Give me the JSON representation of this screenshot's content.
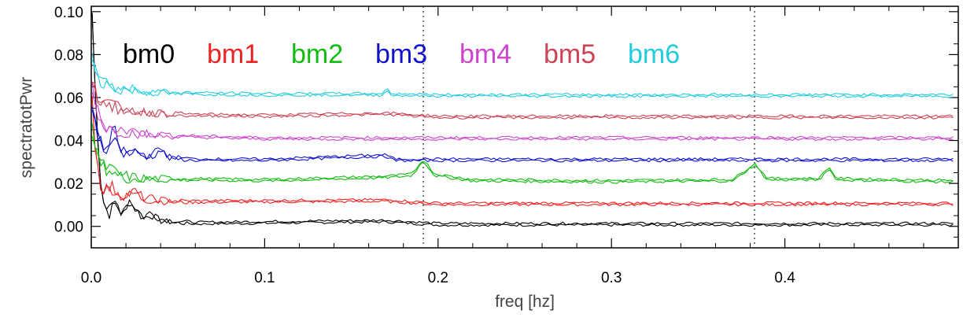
{
  "chart_data": {
    "type": "line",
    "xlabel": "freq [hz]",
    "ylabel": "spectratotPwr",
    "xlim": [
      0.0,
      0.5
    ],
    "ylim": [
      -0.01,
      0.1025
    ],
    "x_ticks": [
      {
        "value": 0.0,
        "label": "0.0"
      },
      {
        "value": 0.1,
        "label": "0.1"
      },
      {
        "value": 0.2,
        "label": "0.2"
      },
      {
        "value": 0.3,
        "label": "0.3"
      },
      {
        "value": 0.4,
        "label": "0.4"
      }
    ],
    "y_ticks": [
      {
        "value": 0.0,
        "label": "0.00"
      },
      {
        "value": 0.02,
        "label": "0.02"
      },
      {
        "value": 0.04,
        "label": "0.04"
      },
      {
        "value": 0.06,
        "label": "0.06"
      },
      {
        "value": 0.08,
        "label": "0.08"
      },
      {
        "value": 0.1,
        "label": "0.10"
      }
    ],
    "vertical_lines": [
      0.1915,
      0.3825
    ],
    "legend_placement": "top-left, horizontal row",
    "series": [
      {
        "name": "bm0",
        "color": "#000000",
        "baseline": 0.001,
        "points": [
          [
            0.0005,
            0.1
          ],
          [
            0.0025,
            0.06
          ],
          [
            0.005,
            0.025
          ],
          [
            0.007,
            0.012
          ],
          [
            0.01,
            0.006
          ],
          [
            0.014,
            0.011
          ],
          [
            0.018,
            0.006
          ],
          [
            0.022,
            0.012
          ],
          [
            0.026,
            0.008
          ],
          [
            0.03,
            0.004
          ],
          [
            0.034,
            0.006
          ],
          [
            0.04,
            0.003
          ],
          [
            0.05,
            0.002
          ],
          [
            0.06,
            0.0015
          ],
          [
            0.17,
            0.0025
          ],
          [
            0.2,
            0.001
          ],
          [
            0.3,
            0.001
          ],
          [
            0.4,
            0.001
          ],
          [
            0.497,
            0.001
          ]
        ]
      },
      {
        "name": "bm1",
        "color": "#ee2222",
        "baseline": 0.0105,
        "points": [
          [
            0.0005,
            0.06
          ],
          [
            0.0025,
            0.035
          ],
          [
            0.005,
            0.02
          ],
          [
            0.008,
            0.017
          ],
          [
            0.012,
            0.018
          ],
          [
            0.016,
            0.015
          ],
          [
            0.02,
            0.014
          ],
          [
            0.025,
            0.016
          ],
          [
            0.03,
            0.013
          ],
          [
            0.04,
            0.012
          ],
          [
            0.05,
            0.0115
          ],
          [
            0.17,
            0.012
          ],
          [
            0.2,
            0.0105
          ],
          [
            0.3,
            0.0105
          ],
          [
            0.4,
            0.0105
          ],
          [
            0.497,
            0.0105
          ]
        ]
      },
      {
        "name": "bm2",
        "color": "#11bb11",
        "baseline": 0.021,
        "points": [
          [
            0.0005,
            0.045
          ],
          [
            0.003,
            0.035
          ],
          [
            0.006,
            0.028
          ],
          [
            0.01,
            0.027
          ],
          [
            0.015,
            0.024
          ],
          [
            0.02,
            0.023
          ],
          [
            0.03,
            0.022
          ],
          [
            0.05,
            0.022
          ],
          [
            0.1,
            0.0215
          ],
          [
            0.17,
            0.023
          ],
          [
            0.185,
            0.024
          ],
          [
            0.1915,
            0.031
          ],
          [
            0.198,
            0.024
          ],
          [
            0.22,
            0.0215
          ],
          [
            0.3,
            0.021
          ],
          [
            0.37,
            0.0215
          ],
          [
            0.3825,
            0.029
          ],
          [
            0.39,
            0.022
          ],
          [
            0.42,
            0.022
          ],
          [
            0.425,
            0.0275
          ],
          [
            0.43,
            0.022
          ],
          [
            0.497,
            0.021
          ]
        ]
      },
      {
        "name": "bm3",
        "color": "#1111cc",
        "baseline": 0.031,
        "points": [
          [
            0.0005,
            0.054
          ],
          [
            0.003,
            0.045
          ],
          [
            0.006,
            0.037
          ],
          [
            0.01,
            0.036
          ],
          [
            0.013,
            0.046
          ],
          [
            0.016,
            0.036
          ],
          [
            0.02,
            0.034
          ],
          [
            0.025,
            0.035
          ],
          [
            0.03,
            0.033
          ],
          [
            0.035,
            0.033
          ],
          [
            0.04,
            0.036
          ],
          [
            0.045,
            0.032
          ],
          [
            0.06,
            0.031
          ],
          [
            0.1,
            0.031
          ],
          [
            0.17,
            0.033
          ],
          [
            0.175,
            0.031
          ],
          [
            0.3,
            0.031
          ],
          [
            0.4,
            0.031
          ],
          [
            0.497,
            0.031
          ]
        ]
      },
      {
        "name": "bm4",
        "color": "#cc44cc",
        "baseline": 0.041,
        "points": [
          [
            0.0005,
            0.064
          ],
          [
            0.003,
            0.055
          ],
          [
            0.006,
            0.048
          ],
          [
            0.01,
            0.046
          ],
          [
            0.015,
            0.045
          ],
          [
            0.02,
            0.044
          ],
          [
            0.025,
            0.044
          ],
          [
            0.03,
            0.043
          ],
          [
            0.05,
            0.042
          ],
          [
            0.1,
            0.041
          ],
          [
            0.2,
            0.041
          ],
          [
            0.3,
            0.041
          ],
          [
            0.4,
            0.041
          ],
          [
            0.497,
            0.041
          ]
        ]
      },
      {
        "name": "bm5",
        "color": "#cc4455",
        "baseline": 0.051,
        "points": [
          [
            0.0005,
            0.07
          ],
          [
            0.003,
            0.062
          ],
          [
            0.006,
            0.058
          ],
          [
            0.01,
            0.057
          ],
          [
            0.015,
            0.055
          ],
          [
            0.02,
            0.054
          ],
          [
            0.025,
            0.054
          ],
          [
            0.03,
            0.053
          ],
          [
            0.05,
            0.052
          ],
          [
            0.1,
            0.0515
          ],
          [
            0.17,
            0.0525
          ],
          [
            0.2,
            0.051
          ],
          [
            0.3,
            0.051
          ],
          [
            0.4,
            0.051
          ],
          [
            0.497,
            0.051
          ]
        ]
      },
      {
        "name": "bm6",
        "color": "#22ccdd",
        "baseline": 0.061,
        "points": [
          [
            0.0005,
            0.08
          ],
          [
            0.003,
            0.072
          ],
          [
            0.006,
            0.068
          ],
          [
            0.01,
            0.066
          ],
          [
            0.015,
            0.064
          ],
          [
            0.02,
            0.064
          ],
          [
            0.03,
            0.063
          ],
          [
            0.05,
            0.062
          ],
          [
            0.1,
            0.0615
          ],
          [
            0.168,
            0.0615
          ],
          [
            0.17,
            0.064
          ],
          [
            0.173,
            0.0615
          ],
          [
            0.2,
            0.061
          ],
          [
            0.3,
            0.061
          ],
          [
            0.4,
            0.061
          ],
          [
            0.497,
            0.061
          ]
        ]
      }
    ]
  }
}
